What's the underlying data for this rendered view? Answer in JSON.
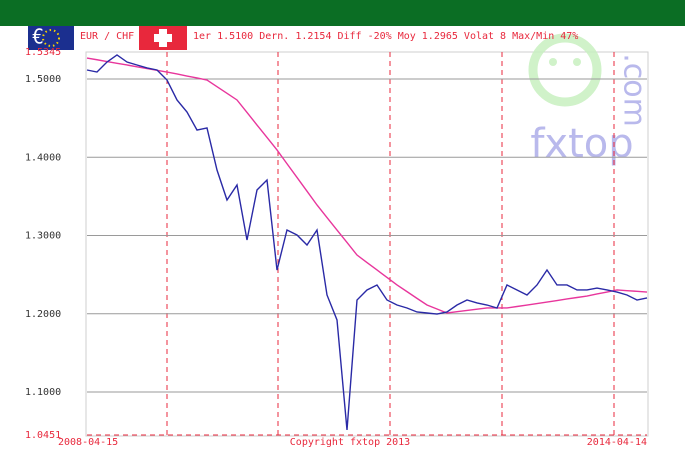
{
  "chart_data": {
    "type": "line",
    "title": "EUR / CHF",
    "subtitle": "1er 1.5100 Dern. 1.2154 Diff -20% Moy 1.2965 Volat 8 Max/Min 47%",
    "annotation": "Copyright fxtop 2013",
    "watermark": "fxtop",
    "watermark_suffix": ".com",
    "categories": [
      "2008-04-15",
      null,
      null,
      null,
      null,
      null,
      null,
      null,
      null,
      null,
      null,
      null,
      null,
      null,
      null,
      null,
      null,
      null,
      null,
      null,
      null,
      null,
      null,
      null,
      null,
      null,
      null,
      null,
      null,
      null,
      null,
      null,
      null,
      null,
      null,
      null,
      null,
      null,
      null,
      null,
      null,
      null,
      null,
      null,
      null,
      null,
      null,
      null,
      null,
      null,
      null,
      null,
      null,
      null,
      null,
      null,
      "2014-04-14"
    ],
    "series": [
      {
        "color": "#2a2aa6",
        "values": [
          1.5115,
          1.5089,
          1.5217,
          1.5307,
          1.5217,
          1.5179,
          1.5141,
          1.5115,
          1.4987,
          1.4732,
          1.4578,
          1.4348,
          1.4374,
          1.3837,
          1.3454,
          1.3646,
          1.2943,
          1.3582,
          1.3709,
          1.2559,
          1.3071,
          1.3007,
          1.2879,
          1.3071,
          1.224,
          1.1921,
          1.0515,
          1.2176,
          1.2304,
          1.2368,
          1.2176,
          1.2112,
          1.2074,
          1.2023,
          1.201,
          1.1997,
          1.2023,
          1.2112,
          1.2176,
          1.2138,
          1.2112,
          1.2074,
          1.2368,
          1.2304,
          1.224,
          1.2368,
          1.2559,
          1.2368,
          1.2368,
          1.2304,
          1.2304,
          1.2329,
          1.2304,
          1.2278,
          1.224,
          1.2176,
          1.2202
        ]
      },
      {
        "color": "#e8369c",
        "values": [
          1.5268,
          1.5246,
          1.5223,
          1.5201,
          1.5179,
          1.5156,
          1.5134,
          1.5111,
          1.5089,
          1.5064,
          1.5038,
          1.5013,
          1.4987,
          1.4902,
          1.4817,
          1.4732,
          1.4572,
          1.4412,
          1.4253,
          1.4093,
          1.3917,
          1.3742,
          1.3566,
          1.339,
          1.323,
          1.307,
          1.2911,
          1.2751,
          1.2655,
          1.256,
          1.2464,
          1.2368,
          1.2283,
          1.2197,
          1.2112,
          1.2061,
          1.201,
          1.2026,
          1.2042,
          1.2058,
          1.2074,
          1.2074,
          1.2074,
          1.2093,
          1.2112,
          1.2131,
          1.215,
          1.2169,
          1.2189,
          1.2208,
          1.2227,
          1.2253,
          1.2278,
          1.2304,
          1.2295,
          1.2287,
          1.2278
        ]
      }
    ],
    "ylim": [
      1.0451,
      1.5345
    ],
    "yticks": [
      1.0451,
      {
        "value": 1.1,
        "label": "1.1000"
      },
      {
        "value": 1.2,
        "label": "1.2000"
      },
      {
        "value": 1.3,
        "label": "1.3000"
      },
      {
        "value": 1.4,
        "label": "1.4000"
      },
      {
        "value": 1.5,
        "label": "1.5000"
      },
      1.5345
    ],
    "grid": true,
    "limit_tick_color": "#e8283c",
    "tick_color": "#333333"
  }
}
